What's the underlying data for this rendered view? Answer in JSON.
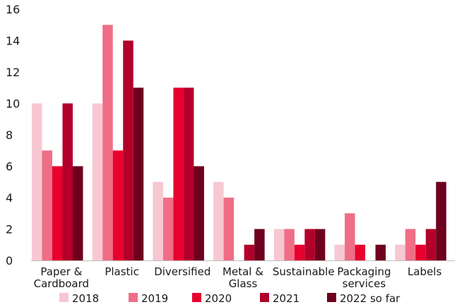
{
  "chart_data": {
    "type": "bar",
    "categories": [
      [
        "Paper &",
        "Cardboard"
      ],
      [
        "Plastic"
      ],
      [
        "Diversified"
      ],
      [
        "Metal &",
        "Glass"
      ],
      [
        "Sustainable"
      ],
      [
        "Packaging",
        "services"
      ],
      [
        "Labels"
      ]
    ],
    "series": [
      {
        "name": "2018",
        "color": "#f7c8d2",
        "values": [
          10,
          10,
          5,
          5,
          2,
          1,
          1
        ]
      },
      {
        "name": "2019",
        "color": "#ef6e86",
        "values": [
          7,
          15,
          4,
          4,
          2,
          3,
          2
        ]
      },
      {
        "name": "2020",
        "color": "#e8002f",
        "values": [
          6,
          7,
          11,
          0,
          1,
          1,
          1
        ]
      },
      {
        "name": "2021",
        "color": "#b3002a",
        "values": [
          10,
          14,
          11,
          1,
          2,
          0,
          2
        ]
      },
      {
        "name": "2022 so far",
        "color": "#6e001e",
        "values": [
          6,
          11,
          6,
          2,
          2,
          1,
          5
        ]
      }
    ],
    "ylim": [
      0,
      16
    ],
    "yticks": [
      0,
      2,
      4,
      6,
      8,
      10,
      12,
      14,
      16
    ],
    "grid": false,
    "legend_position": "bottom",
    "title": "",
    "xlabel": "",
    "ylabel": ""
  }
}
